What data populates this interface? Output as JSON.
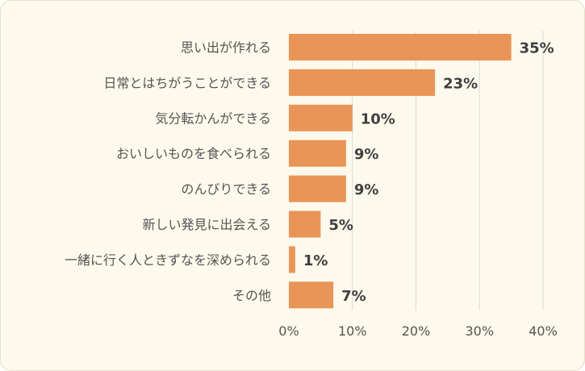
{
  "chart_data": {
    "type": "bar",
    "orientation": "horizontal",
    "categories": [
      "思い出が作れる",
      "日常とはちがうことができる",
      "気分転かんができる",
      "おいしいものを食べられる",
      "のんびりできる",
      "新しい発見に出会える",
      "一緒に行く人ときずなを深められる",
      "その他"
    ],
    "values": [
      35,
      23,
      10,
      9,
      9,
      5,
      1,
      7
    ],
    "value_labels": [
      "35%",
      "23%",
      "10%",
      "9%",
      "9%",
      "5%",
      "1%",
      "7%"
    ],
    "xlim": [
      0,
      40
    ],
    "x_ticks": [
      "0%",
      "10%",
      "20%",
      "30%",
      "40%"
    ],
    "grid": true,
    "bar_color": "#e89557",
    "background_color": "#fdf9ec"
  }
}
